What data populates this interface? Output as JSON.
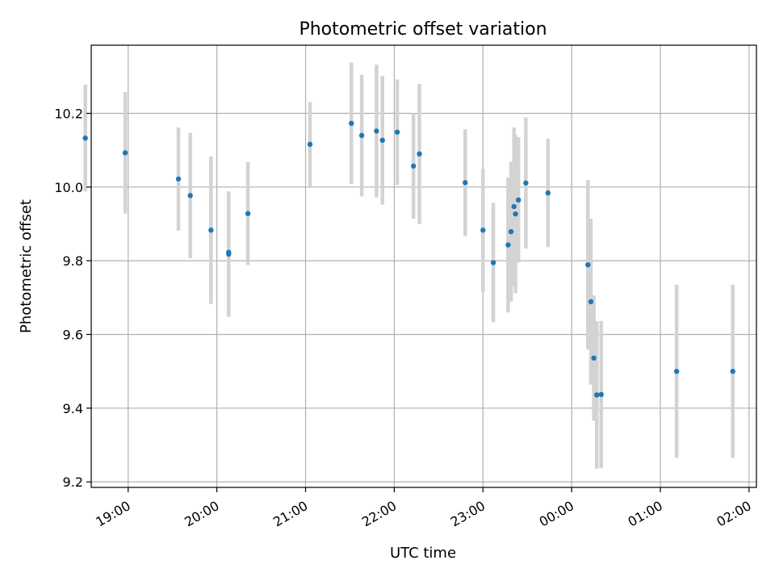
{
  "chart_data": {
    "type": "scatter",
    "title": "Photometric offset variation",
    "xlabel": "UTC time",
    "ylabel": "Photometric offset",
    "x_axis_kind": "time",
    "xlim": [
      "18:35",
      "02:05"
    ],
    "ylim": [
      9.185,
      10.385
    ],
    "x_ticks": [
      "19:00",
      "20:00",
      "21:00",
      "22:00",
      "23:00",
      "00:00",
      "01:00",
      "02:00"
    ],
    "y_ticks": [
      9.2,
      9.4,
      9.6,
      9.8,
      10.0,
      10.2
    ],
    "grid": true,
    "colors": {
      "point": "#1f77b4",
      "errorbar": "#d3d3d3"
    },
    "points": [
      {
        "x": "18:31",
        "y": 10.133,
        "err": 0.145
      },
      {
        "x": "18:58",
        "y": 10.093,
        "err": 0.165
      },
      {
        "x": "19:34",
        "y": 10.022,
        "err": 0.14
      },
      {
        "x": "19:42",
        "y": 9.977,
        "err": 0.17
      },
      {
        "x": "19:56",
        "y": 9.883,
        "err": 0.2
      },
      {
        "x": "20:08",
        "y": 9.823,
        "err": 0.165
      },
      {
        "x": "20:08",
        "y": 9.818,
        "err": 0.17
      },
      {
        "x": "20:21",
        "y": 9.928,
        "err": 0.14
      },
      {
        "x": "21:03",
        "y": 10.116,
        "err": 0.115
      },
      {
        "x": "21:31",
        "y": 10.173,
        "err": 0.165
      },
      {
        "x": "21:38",
        "y": 10.14,
        "err": 0.165
      },
      {
        "x": "21:48",
        "y": 10.152,
        "err": 0.18
      },
      {
        "x": "21:52",
        "y": 10.127,
        "err": 0.175
      },
      {
        "x": "22:02",
        "y": 10.149,
        "err": 0.143
      },
      {
        "x": "22:13",
        "y": 10.057,
        "err": 0.143
      },
      {
        "x": "22:17",
        "y": 10.09,
        "err": 0.19
      },
      {
        "x": "22:48",
        "y": 10.012,
        "err": 0.145
      },
      {
        "x": "23:00",
        "y": 9.883,
        "err": 0.167
      },
      {
        "x": "23:07",
        "y": 9.795,
        "err": 0.162
      },
      {
        "x": "23:17",
        "y": 9.843,
        "err": 0.183
      },
      {
        "x": "23:19",
        "y": 9.879,
        "err": 0.19
      },
      {
        "x": "23:21",
        "y": 9.947,
        "err": 0.215
      },
      {
        "x": "23:22",
        "y": 9.927,
        "err": 0.215
      },
      {
        "x": "23:24",
        "y": 9.965,
        "err": 0.17
      },
      {
        "x": "23:29",
        "y": 10.011,
        "err": 0.178
      },
      {
        "x": "23:44",
        "y": 9.984,
        "err": 0.147
      },
      {
        "x": "00:11",
        "y": 9.789,
        "err": 0.23
      },
      {
        "x": "00:13",
        "y": 9.689,
        "err": 0.225
      },
      {
        "x": "00:15",
        "y": 9.536,
        "err": 0.17
      },
      {
        "x": "00:17",
        "y": 9.436,
        "err": 0.2
      },
      {
        "x": "00:20",
        "y": 9.437,
        "err": 0.2
      },
      {
        "x": "01:11",
        "y": 9.5,
        "err": 0.235
      },
      {
        "x": "01:49",
        "y": 9.5,
        "err": 0.235
      }
    ]
  }
}
